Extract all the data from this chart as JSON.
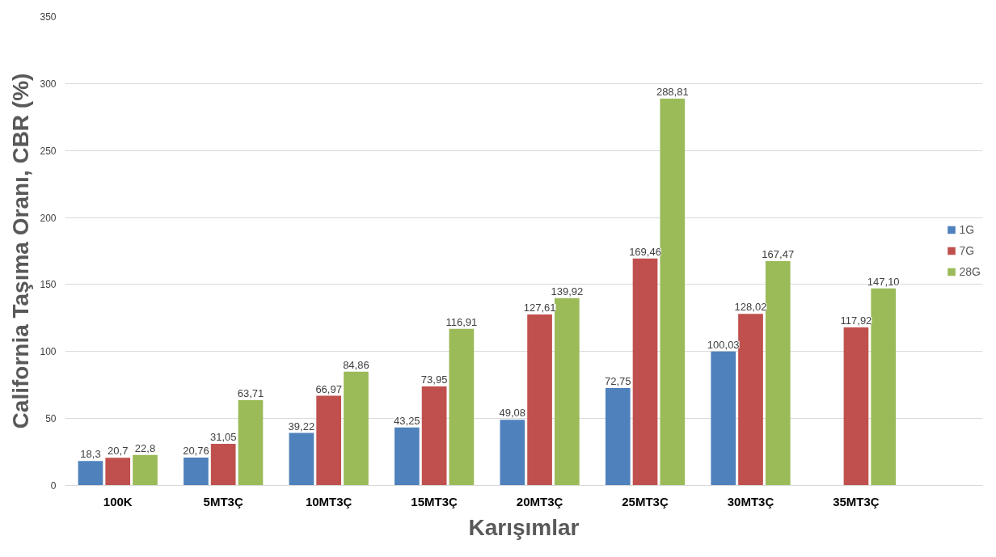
{
  "chart_data": {
    "type": "bar",
    "xlabel": "Karışımlar",
    "ylabel": "California Taşıma Oranı, CBR (%)",
    "categories": [
      "100K",
      "5MT3Ç",
      "10MT3Ç",
      "15MT3Ç",
      "20MT3Ç",
      "25MT3Ç",
      "30MT3Ç",
      "35MT3Ç"
    ],
    "series": [
      {
        "name": "1G",
        "color": "#4f81bd",
        "values": [
          18.3,
          20.76,
          39.22,
          43.25,
          49.08,
          72.75,
          100.03,
          null
        ],
        "value_labels": [
          "18,3",
          "20,76",
          "39,22",
          "43,25",
          "49,08",
          "72,75",
          "100,03",
          null
        ]
      },
      {
        "name": "7G",
        "color": "#c0504d",
        "values": [
          20.7,
          31.05,
          66.97,
          73.95,
          127.61,
          169.46,
          128.02,
          117.92
        ],
        "value_labels": [
          "20,7",
          "31,05",
          "66,97",
          "73,95",
          "127,61",
          "169,46",
          "128,02",
          "117,92"
        ]
      },
      {
        "name": "28G",
        "color": "#9bbb59",
        "values": [
          22.8,
          63.71,
          84.86,
          116.91,
          139.92,
          288.81,
          167.47,
          147.1
        ],
        "value_labels": [
          "22,8",
          "63,71",
          "84,86",
          "116,91",
          "139,92",
          "288,81",
          "167,47",
          "147,10"
        ]
      }
    ],
    "ylim": [
      0,
      350
    ],
    "yticks": [
      0,
      50,
      100,
      150,
      200,
      250,
      300,
      350
    ],
    "grid": "y",
    "legend": "right"
  }
}
